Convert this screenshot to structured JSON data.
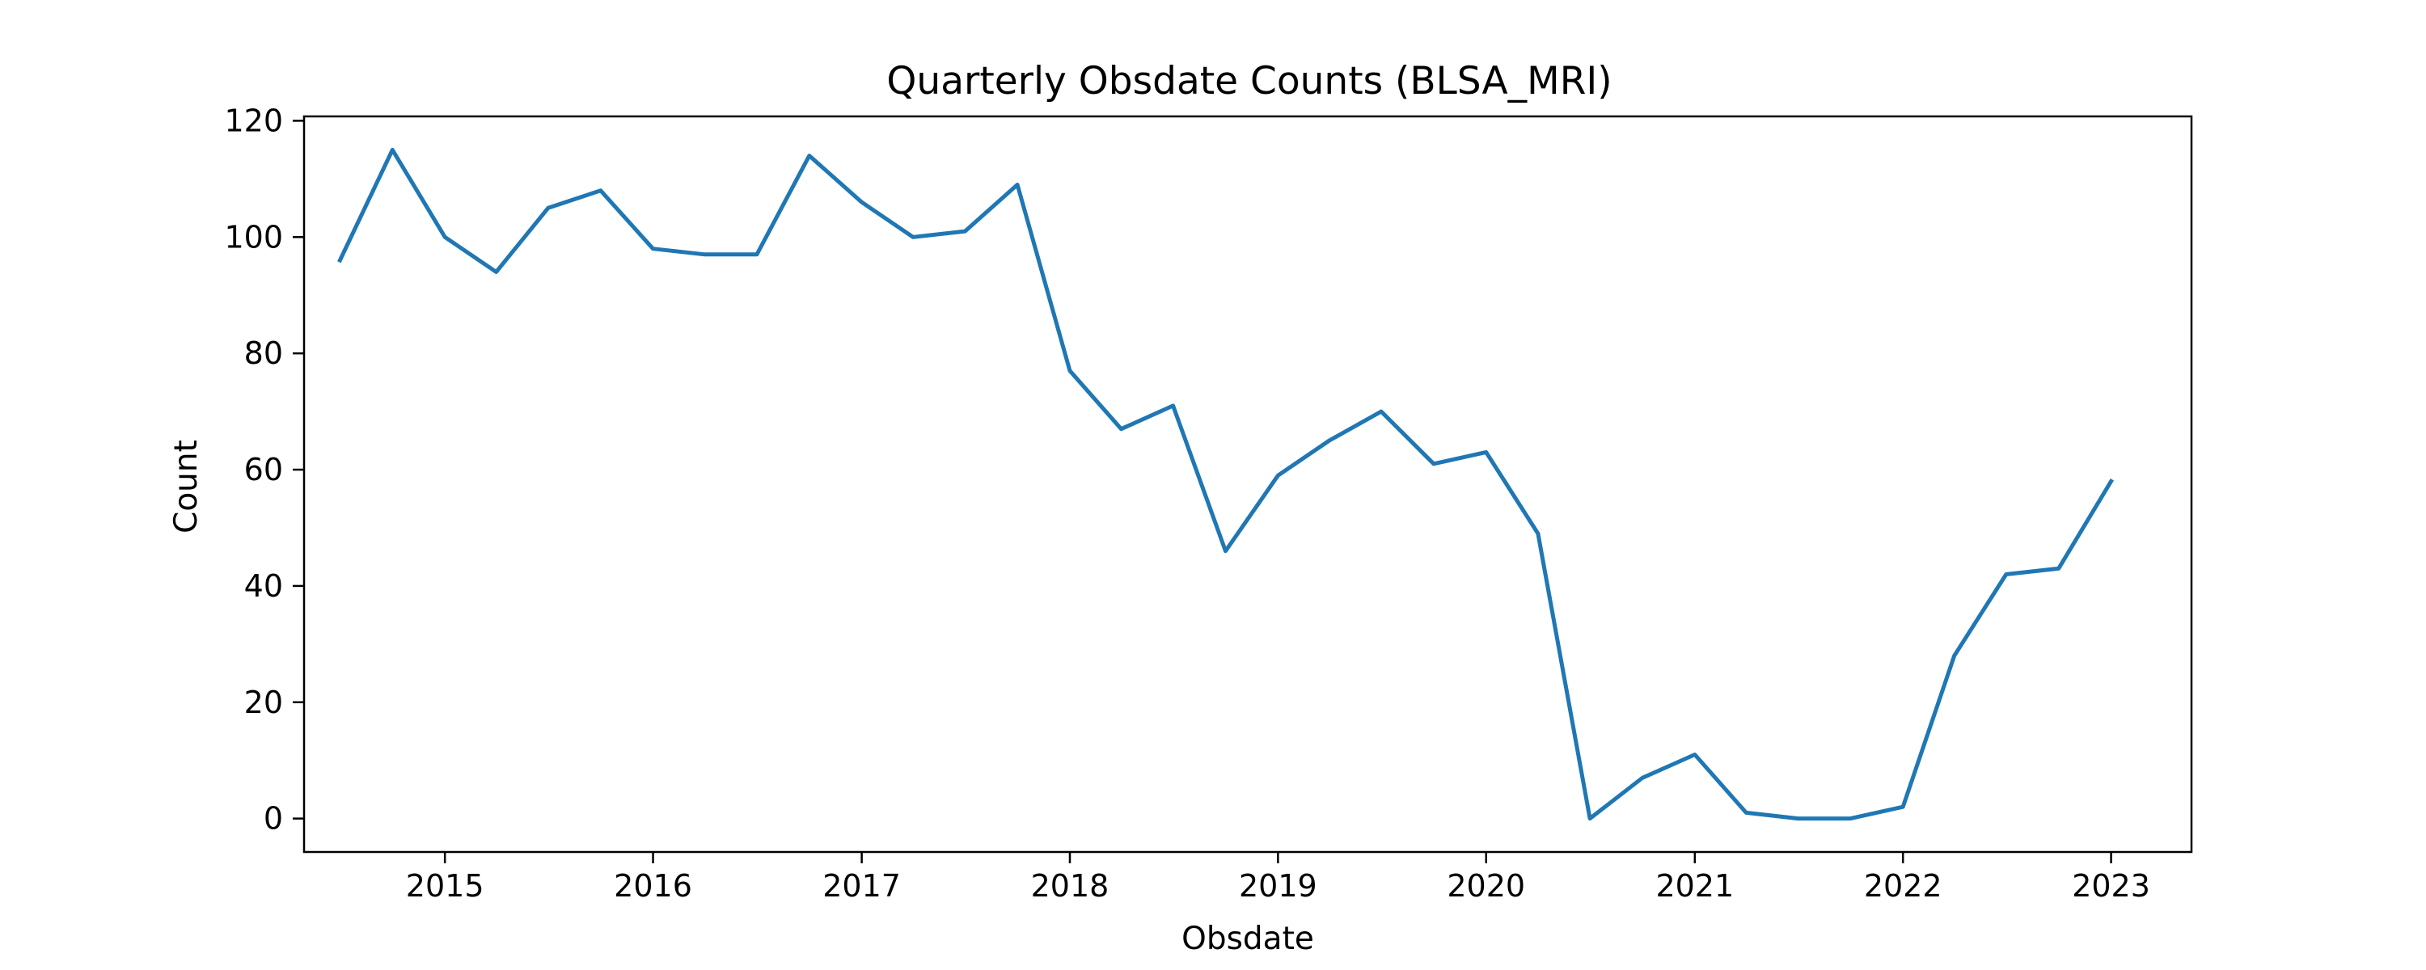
{
  "chart_data": {
    "type": "line",
    "title": "Quarterly Obsdate Counts (BLSA_MRI)",
    "xlabel": "Obsdate",
    "ylabel": "Count",
    "x": [
      "2014-07-01",
      "2014-10-01",
      "2015-01-01",
      "2015-04-01",
      "2015-07-01",
      "2015-10-01",
      "2016-01-01",
      "2016-04-01",
      "2016-07-01",
      "2016-10-01",
      "2017-01-01",
      "2017-04-01",
      "2017-07-01",
      "2017-10-01",
      "2018-01-01",
      "2018-04-01",
      "2018-07-01",
      "2018-10-01",
      "2019-01-01",
      "2019-04-01",
      "2019-07-01",
      "2019-10-01",
      "2020-01-01",
      "2020-04-01",
      "2020-07-01",
      "2020-10-01",
      "2021-01-01",
      "2021-04-01",
      "2021-07-01",
      "2021-10-01",
      "2022-01-01",
      "2022-04-01",
      "2022-07-01",
      "2022-10-01",
      "2023-01-01"
    ],
    "series": [
      {
        "values": [
          96,
          115,
          100,
          94,
          105,
          108,
          98,
          97,
          97,
          114,
          106,
          100,
          101,
          109,
          77,
          67,
          71,
          46,
          59,
          65,
          70,
          61,
          63,
          49,
          0,
          7,
          11,
          1,
          0,
          0,
          2,
          28,
          42,
          43,
          58
        ],
        "color": "#1f77b4"
      }
    ],
    "x_ticks": [
      "2015",
      "2016",
      "2017",
      "2018",
      "2019",
      "2020",
      "2021",
      "2022",
      "2023"
    ],
    "y_ticks": [
      "0",
      "20",
      "40",
      "60",
      "80",
      "100",
      "120"
    ],
    "xlim": [
      "2014-04-29",
      "2023-05-22"
    ],
    "ylim": [
      -5.75,
      120.75
    ],
    "grid": false,
    "legend": "none"
  }
}
